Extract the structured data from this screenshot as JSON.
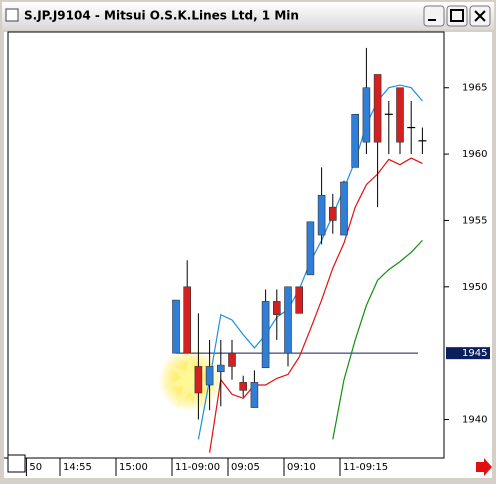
{
  "chart_data": {
    "type": "candlestick",
    "title": "S.JP.J9104 - Mitsui O.S.K.Lines Ltd, 1 Min",
    "categories": [
      "50",
      null,
      null,
      "14:55",
      null,
      null,
      null,
      null,
      "15:00",
      null,
      null,
      null,
      null,
      "11-09:00",
      null,
      null,
      null,
      null,
      "09:05",
      null,
      null,
      null,
      null,
      "09:10",
      null,
      null,
      null,
      null,
      "11-09:15",
      null,
      null,
      null,
      null,
      null,
      null,
      null
    ],
    "ohlc": {
      "up_color": "#2f7fd8",
      "down_color": "#d42020",
      "flat_color": "#000000",
      "open": [
        null,
        null,
        null,
        null,
        null,
        null,
        null,
        null,
        null,
        null,
        null,
        null,
        null,
        1945,
        1950,
        1944,
        1942.6,
        1943.6,
        1945,
        1942.8,
        1940.9,
        1943.9,
        1948.9,
        1945,
        1950,
        1950.9,
        1953.9,
        1956,
        1953.9,
        1959,
        1960.9,
        1966,
        1963,
        1965,
        1962,
        1961
      ],
      "high": [
        null,
        null,
        null,
        null,
        null,
        null,
        null,
        null,
        null,
        null,
        null,
        null,
        null,
        1949,
        1952,
        1948,
        1946,
        1946,
        1946,
        1943.3,
        1943.7,
        1949.8,
        1949.8,
        1950,
        1950,
        1954.9,
        1959,
        1957,
        1958,
        1963,
        1968,
        1966,
        1964,
        1965,
        1964,
        1962
      ],
      "low": [
        null,
        null,
        null,
        null,
        null,
        null,
        null,
        null,
        null,
        null,
        null,
        null,
        null,
        1945,
        1945,
        1940,
        1940.7,
        1941,
        1943,
        1941.7,
        1940.9,
        1943.9,
        1946,
        1944,
        1948,
        1950.9,
        1953.2,
        1954,
        1953.9,
        1959,
        1960,
        1956,
        1960,
        1960,
        1960,
        1960
      ],
      "close": [
        null,
        null,
        null,
        null,
        null,
        null,
        null,
        null,
        null,
        null,
        null,
        null,
        null,
        1949,
        1945,
        1942,
        1944,
        1944.1,
        1944,
        1942.2,
        1942.8,
        1948.9,
        1947.9,
        1950,
        1948,
        1954.9,
        1956.9,
        1955,
        1957.9,
        1963,
        1965,
        1960.9,
        1963,
        1960.9,
        1962,
        1961
      ]
    },
    "lines": [
      {
        "color": "#1e90e0",
        "values": [
          null,
          null,
          null,
          null,
          null,
          null,
          null,
          null,
          null,
          null,
          null,
          null,
          null,
          null,
          null,
          1938.5,
          1943,
          1947.9,
          1947.5,
          1946.4,
          1945.4,
          1946.4,
          1947.7,
          1948.3,
          1949.8,
          1951.9,
          1953.5,
          1955.4,
          1957.4,
          1959.5,
          1962.2,
          1964,
          1965,
          1965.2,
          1965,
          1964
        ]
      },
      {
        "color": "#e01010",
        "values": [
          null,
          null,
          null,
          null,
          null,
          null,
          null,
          null,
          null,
          null,
          null,
          null,
          null,
          null,
          null,
          null,
          1937.5,
          1943,
          1941.9,
          1941.6,
          1942.6,
          1942.6,
          1943.1,
          1943.4,
          1944.7,
          1946.8,
          1949,
          1951.4,
          1953.3,
          1956,
          1957.7,
          1958.5,
          1959.6,
          1959.2,
          1959.7,
          1959.3
        ]
      },
      {
        "color": "#109010",
        "values": [
          null,
          null,
          null,
          null,
          null,
          null,
          null,
          null,
          null,
          null,
          null,
          null,
          null,
          null,
          null,
          null,
          null,
          null,
          null,
          null,
          null,
          null,
          null,
          null,
          null,
          null,
          null,
          1938.5,
          1943,
          1946,
          1948.6,
          1950.5,
          1951.3,
          1951.9,
          1952.6,
          1953.5
        ]
      }
    ],
    "last_price": 1945,
    "last_price_color": "#0a1f5c",
    "ylim": [
      1937.1,
      1969.2
    ],
    "yticks": [
      1940,
      1950,
      1955,
      1960,
      1965
    ]
  }
}
